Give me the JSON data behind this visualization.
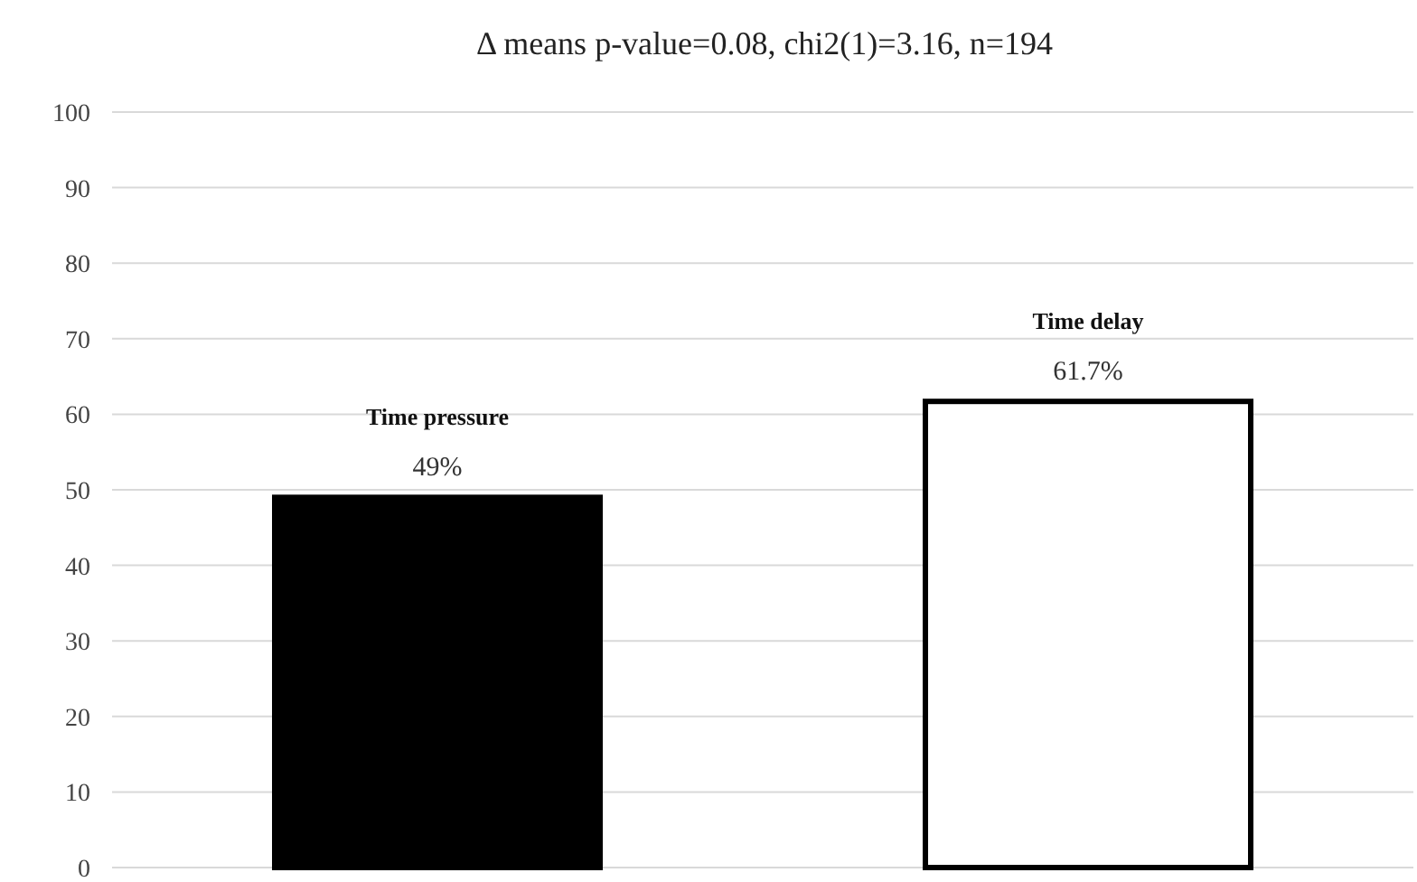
{
  "chart_data": {
    "type": "bar",
    "title": "Δ means p-value=0.08, chi2(1)=3.16, n=194",
    "categories": [
      "Time pressure",
      "Time delay"
    ],
    "values": [
      49,
      61.7
    ],
    "colors": [
      "#000000",
      "#ffffff"
    ],
    "value_labels": [
      "49%",
      "61.7%"
    ],
    "ylim": [
      0,
      100
    ],
    "yticks": [
      0,
      10,
      20,
      30,
      40,
      50,
      60,
      70,
      80,
      90,
      100
    ],
    "grid": "y"
  }
}
